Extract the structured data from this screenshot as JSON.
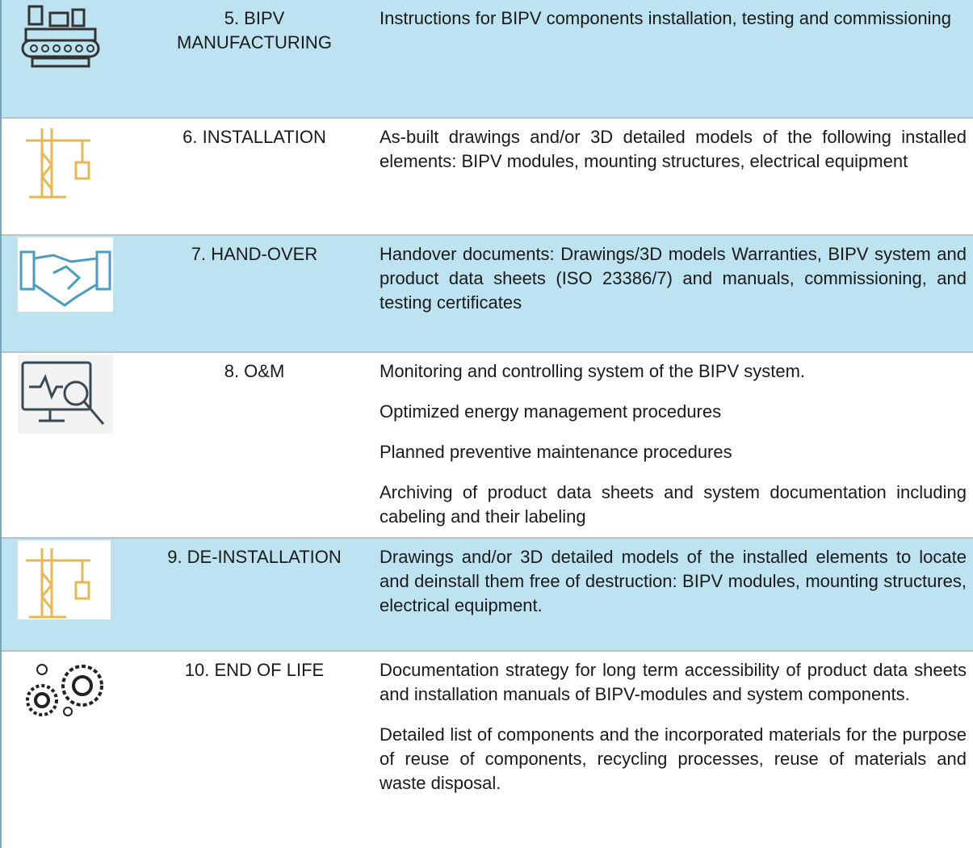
{
  "table": {
    "rows": [
      {
        "stage": "5. BIPV\nMANUFACTURING",
        "description": [
          "Instructions for BIPV components installation, testing and commissioning"
        ]
      },
      {
        "stage": "6. INSTALLATION",
        "description": [
          "As-built drawings and/or 3D detailed models of the following installed elements: BIPV modules, mounting structures, electrical equipment"
        ]
      },
      {
        "stage": "7. HAND-OVER",
        "description": [
          "Handover documents: Drawings/3D models Warranties, BIPV system and product data sheets (ISO 23386/7) and manuals, commissioning, and testing certificates"
        ]
      },
      {
        "stage": "8. O&M",
        "description": [
          "Monitoring and controlling system of the BIPV system.",
          "Optimized energy management procedures",
          "Planned preventive maintenance procedures",
          "Archiving of product data sheets and system documentation including cabeling and their labeling"
        ]
      },
      {
        "stage": "9. DE-INSTALLATION",
        "description": [
          "Drawings and/or 3D detailed models of the installed elements to locate and deinstall them free of destruction: BIPV modules, mounting structures, electrical equipment."
        ]
      },
      {
        "stage": "10. END OF LIFE",
        "description": [
          "Documentation strategy for long term accessibility of product data sheets and installation manuals of BIPV-modules and system components.",
          "Detailed list of components and the incorporated materials for the purpose of reuse of components, recycling processes, reuse of materials and waste disposal."
        ]
      }
    ]
  }
}
